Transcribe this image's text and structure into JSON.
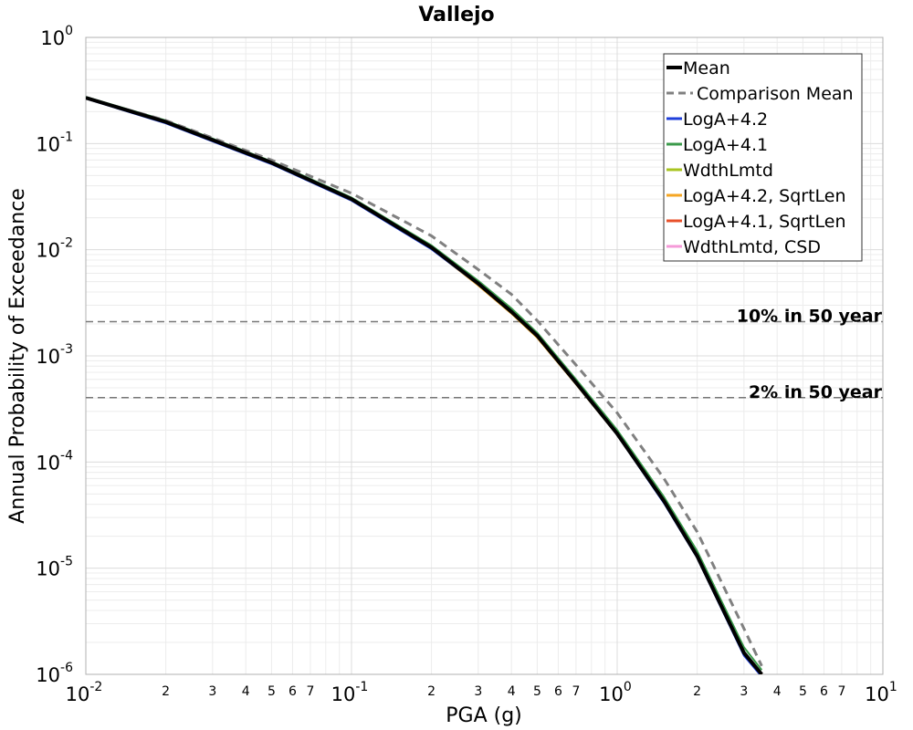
{
  "chart_data": {
    "type": "line",
    "title": "Vallejo",
    "xlabel": "PGA (g)",
    "ylabel": "Annual Probability of Exceedance",
    "x_scale": "log",
    "y_scale": "log",
    "xlim": [
      0.01,
      10
    ],
    "ylim": [
      1e-06,
      1
    ],
    "grid": true,
    "legend_position": "top-right",
    "x_major_ticks": [
      {
        "value": 0.01,
        "base": "10",
        "exp": "-2"
      },
      {
        "value": 0.1,
        "base": "10",
        "exp": "-1"
      },
      {
        "value": 1,
        "base": "10",
        "exp": "0"
      },
      {
        "value": 10,
        "base": "10",
        "exp": "1"
      }
    ],
    "x_minor_labels": [
      "2",
      "3",
      "4",
      "5",
      "6",
      "7"
    ],
    "y_major_ticks": [
      {
        "value": 1,
        "base": "10",
        "exp": "0"
      },
      {
        "value": 0.1,
        "base": "10",
        "exp": "-1"
      },
      {
        "value": 0.01,
        "base": "10",
        "exp": "-2"
      },
      {
        "value": 0.001,
        "base": "10",
        "exp": "-3"
      },
      {
        "value": 0.0001,
        "base": "10",
        "exp": "-4"
      },
      {
        "value": 1e-05,
        "base": "10",
        "exp": "-5"
      },
      {
        "value": 1e-06,
        "base": "10",
        "exp": "-6"
      }
    ],
    "hlines": [
      {
        "value": 0.0021,
        "label": "10% in 50 year",
        "color": "#777777"
      },
      {
        "value": 0.000404,
        "label": "2% in 50 year",
        "color": "#777777"
      }
    ],
    "x": [
      0.01,
      0.02,
      0.05,
      0.1,
      0.2,
      0.3,
      0.4,
      0.5,
      0.7,
      1.0,
      1.5,
      2.0,
      3.0,
      3.5
    ],
    "series": [
      {
        "name": "Mean",
        "color": "#000000",
        "width": 4,
        "dash": "",
        "values": [
          0.27,
          0.16,
          0.066,
          0.03,
          0.0105,
          0.0048,
          0.0026,
          0.00155,
          0.00056,
          0.000185,
          4.3e-05,
          1.3e-05,
          1.6e-06,
          1e-06
        ]
      },
      {
        "name": "Comparison Mean",
        "color": "#808080",
        "width": 3,
        "dash": "9,6",
        "values": [
          0.27,
          0.165,
          0.07,
          0.034,
          0.0135,
          0.0065,
          0.0038,
          0.00215,
          0.00082,
          0.00029,
          7e-05,
          2.2e-05,
          2.7e-06,
          1.2e-06
        ]
      },
      {
        "name": "LogA+4.2",
        "color": "#1f3fdb",
        "width": 2,
        "dash": "",
        "values": [
          0.265,
          0.155,
          0.064,
          0.029,
          0.0101,
          0.0047,
          0.00255,
          0.00152,
          0.00055,
          0.00018,
          4.1e-05,
          1.25e-05,
          1.5e-06,
          9.5e-07
        ]
      },
      {
        "name": "LogA+4.1",
        "color": "#3a9a4a",
        "width": 2,
        "dash": "",
        "values": [
          0.275,
          0.165,
          0.068,
          0.031,
          0.011,
          0.0051,
          0.0028,
          0.00165,
          0.0006,
          0.0002,
          4.7e-05,
          1.45e-05,
          1.8e-06,
          1.1e-06
        ]
      },
      {
        "name": "WdthLmtd",
        "color": "#a8c420",
        "width": 2,
        "dash": "",
        "values": [
          0.27,
          0.16,
          0.066,
          0.03,
          0.0104,
          0.0048,
          0.0026,
          0.00154,
          0.00056,
          0.000184,
          4.3e-05,
          1.3e-05,
          1.6e-06,
          1e-06
        ]
      },
      {
        "name": "LogA+4.2, SqrtLen",
        "color": "#f5a623",
        "width": 2,
        "dash": "",
        "values": [
          0.266,
          0.157,
          0.065,
          0.0295,
          0.0102,
          0.0046,
          0.0025,
          0.00148,
          0.00054,
          0.00018,
          4.2e-05,
          1.28e-05,
          1.55e-06,
          9.8e-07
        ]
      },
      {
        "name": "LogA+4.1, SqrtLen",
        "color": "#e8502a",
        "width": 2,
        "dash": "",
        "values": [
          0.268,
          0.158,
          0.0655,
          0.0298,
          0.0103,
          0.0047,
          0.00255,
          0.0015,
          0.00055,
          0.000182,
          4.25e-05,
          1.29e-05,
          1.58e-06,
          9.9e-07
        ]
      },
      {
        "name": "WdthLmtd, CSD",
        "color": "#f59ad8",
        "width": 2,
        "dash": "",
        "values": [
          0.269,
          0.159,
          0.066,
          0.03,
          0.0104,
          0.0048,
          0.0026,
          0.00153,
          0.00056,
          0.000184,
          4.3e-05,
          1.3e-05,
          1.6e-06,
          1e-06
        ]
      }
    ]
  }
}
